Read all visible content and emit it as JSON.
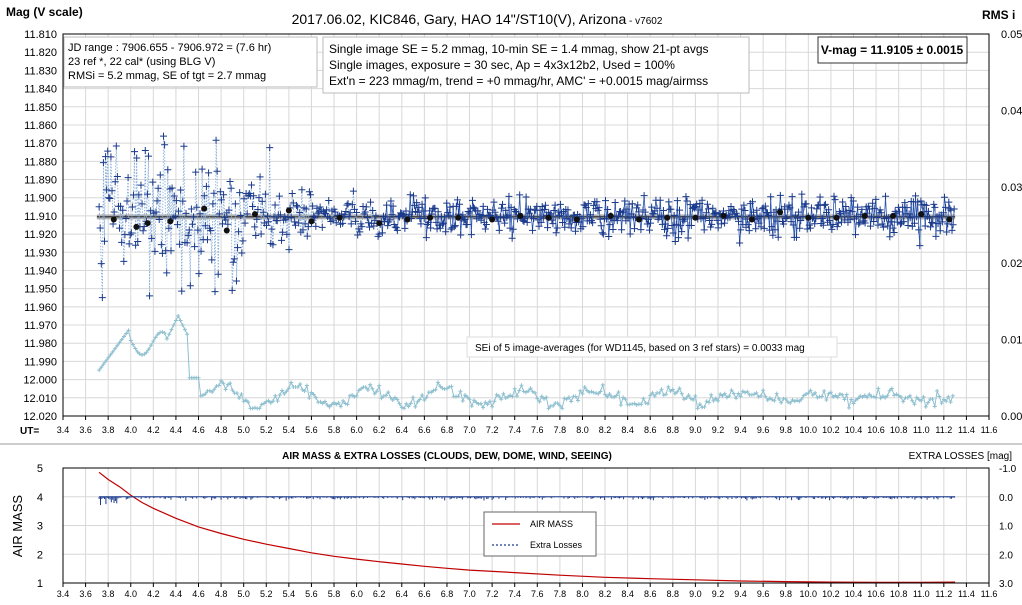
{
  "top_chart": {
    "title": "2017.06.02,  KIC846,  Gary, HAO 14\"/ST10(V), Arizona",
    "title_version": " - v7602",
    "ylabel_left": "Mag (V scale)",
    "ylabel_right": "RMS i",
    "xlabel": "UT=",
    "info_box_1": [
      "JD range : 7906.655 - 7906.972 = (7.6 hr)",
      "23 ref *, 22 cal* (using BLG V)",
      "RMSi = 5.2 mmag, SE of tgt = 2.7 mmag"
    ],
    "info_box_2": [
      "Single image SE = 5.2 mmag, 10-min SE = 1.4 mmag, show 21-pt avgs",
      "Single images, exposure = 30  sec, Ap = 4x3x12b2, Used = 100%",
      "Ext'n = 223 mmag/m, trend = +0 mmag/hr, AMC' = +0.0015 mag/airmss"
    ],
    "vmag_label": "V-mag = 11.9105 ± 0.0015",
    "annotation": "SEi of 5 image-averages (for WD1145, based on 3 ref stars) = 0.0033 mag",
    "colors": {
      "mag": "#1a3a8c",
      "avg": "#111111",
      "rms": "#8fc0d0",
      "fit": "#999999"
    }
  },
  "bottom_chart": {
    "title": "AIR MASS & EXTRA LOSSES (CLOUDS, DEW, DOME, WIND, SEEING)",
    "ylabel_left": "AIR MASS",
    "ylabel_right": "EXTRA LOSSES [mag]",
    "legend": [
      "AIR MASS",
      "Extra Losses"
    ],
    "colors": {
      "airmass": "#c00000",
      "losses": "#1a3a8c"
    }
  },
  "chart_data": [
    {
      "type": "scatter",
      "title": "2017.06.02,  KIC846,  Gary, HAO 14\"/ST10(V), Arizona",
      "xlabel": "UT=",
      "ylabel": "Mag (V scale)",
      "y2label": "RMS i",
      "xlim": [
        3.4,
        11.6
      ],
      "ylim": [
        12.02,
        11.81
      ],
      "y2lim": [
        0.0,
        0.05
      ],
      "x_ticks": [
        "3.4",
        "3.6",
        "3.8",
        "4.0",
        "4.2",
        "4.4",
        "4.6",
        "4.8",
        "5.0",
        "5.2",
        "5.4",
        "5.6",
        "5.8",
        "6.0",
        "6.2",
        "6.4",
        "6.6",
        "6.8",
        "7.0",
        "7.2",
        "7.4",
        "7.6",
        "7.8",
        "8.0",
        "8.2",
        "8.4",
        "8.6",
        "8.8",
        "9.0",
        "9.2",
        "9.4",
        "9.6",
        "9.8",
        "10.0",
        "10.2",
        "10.4",
        "10.6",
        "10.8",
        "11.0",
        "11.2",
        "11.4",
        "11.6"
      ],
      "y_ticks": [
        "11.810",
        "11.820",
        "11.830",
        "11.840",
        "11.850",
        "11.860",
        "11.870",
        "11.880",
        "11.890",
        "11.900",
        "11.910",
        "11.920",
        "11.930",
        "11.940",
        "11.950",
        "11.960",
        "11.970",
        "11.980",
        "11.990",
        "12.000",
        "12.010",
        "12.020"
      ],
      "y2_ticks": [
        "0.00",
        "0.01",
        "0.02",
        "0.03",
        "0.04",
        "0.05"
      ],
      "grid": true,
      "series": [
        {
          "name": "21-pt avgs",
          "x": [
            3.85,
            4.05,
            4.15,
            4.35,
            4.65,
            4.85,
            5.1,
            5.4,
            5.6,
            5.85,
            6.2,
            6.45,
            6.65,
            6.9,
            7.2,
            7.45,
            7.7,
            7.95,
            8.25,
            8.5,
            8.75,
            9.0,
            9.25,
            9.5,
            9.75,
            10.0,
            10.25,
            10.5,
            10.75,
            11.0,
            11.25
          ],
          "y": [
            11.912,
            11.916,
            11.914,
            11.913,
            11.906,
            11.918,
            11.909,
            11.907,
            11.913,
            11.911,
            11.914,
            11.912,
            11.911,
            11.911,
            11.912,
            11.91,
            11.911,
            11.912,
            11.91,
            11.912,
            11.911,
            11.911,
            11.91,
            11.912,
            11.908,
            11.911,
            11.911,
            11.91,
            11.91,
            11.909,
            11.912
          ]
        }
      ],
      "fit_line": {
        "y": 11.9105
      }
    },
    {
      "type": "line",
      "title": "AIR MASS & EXTRA LOSSES (CLOUDS, DEW, DOME, WIND, SEEING)",
      "ylabel": "AIR MASS",
      "y2label": "EXTRA LOSSES [mag]",
      "xlim": [
        3.4,
        11.6
      ],
      "ylim": [
        1,
        5
      ],
      "y2lim": [
        3.0,
        -1.0
      ],
      "x_ticks": [
        "3.4",
        "3.6",
        "3.8",
        "4.0",
        "4.2",
        "4.4",
        "4.6",
        "4.8",
        "5.0",
        "5.2",
        "5.4",
        "5.6",
        "5.8",
        "6.0",
        "6.2",
        "6.4",
        "6.6",
        "6.8",
        "7.0",
        "7.2",
        "7.4",
        "7.6",
        "7.8",
        "8.0",
        "8.2",
        "8.4",
        "8.6",
        "8.8",
        "9.0",
        "9.2",
        "9.4",
        "9.6",
        "9.8",
        "10.0",
        "10.2",
        "10.4",
        "10.6",
        "10.8",
        "11.0",
        "11.2",
        "11.4",
        "11.6"
      ],
      "y_ticks": [
        "1",
        "2",
        "3",
        "4",
        "5"
      ],
      "y2_ticks": [
        "-1.0",
        "0.0",
        "1.0",
        "2.0",
        "3.0"
      ],
      "grid": true,
      "series": [
        {
          "name": "AIR MASS",
          "x": [
            3.72,
            3.8,
            3.9,
            4.0,
            4.1,
            4.2,
            4.4,
            4.6,
            4.8,
            5.0,
            5.2,
            5.4,
            5.6,
            5.8,
            6.0,
            6.2,
            6.4,
            6.6,
            6.8,
            7.0,
            7.4,
            7.8,
            8.2,
            8.6,
            9.0,
            9.4,
            9.8,
            10.2,
            10.6,
            11.0,
            11.3
          ],
          "y": [
            4.85,
            4.6,
            4.35,
            4.05,
            3.8,
            3.6,
            3.25,
            2.95,
            2.72,
            2.52,
            2.35,
            2.2,
            2.05,
            1.93,
            1.83,
            1.74,
            1.66,
            1.58,
            1.51,
            1.45,
            1.36,
            1.27,
            1.2,
            1.15,
            1.11,
            1.07,
            1.05,
            1.03,
            1.02,
            1.02,
            1.03
          ]
        },
        {
          "name": "Extra Losses",
          "x": [
            3.72,
            11.3
          ],
          "y": [
            0.0,
            0.0
          ]
        }
      ]
    }
  ]
}
